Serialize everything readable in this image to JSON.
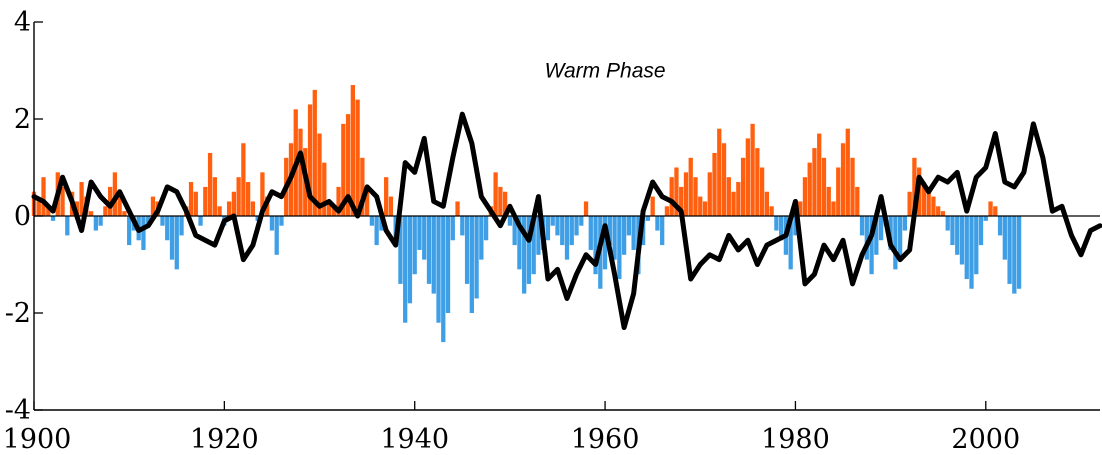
{
  "chart_data": {
    "type": "bar",
    "xlim": [
      1900,
      2012
    ],
    "ylim": [
      -4,
      4
    ],
    "x_ticks": [
      1900,
      1920,
      1940,
      1960,
      1980,
      2000
    ],
    "y_ticks": [
      4,
      2,
      0,
      -2,
      -4
    ],
    "x_tick_labels": [
      "1900",
      "1920",
      "1940",
      "1960",
      "1980",
      "2000"
    ],
    "y_tick_labels": [
      "4",
      "2",
      "0",
      "-2",
      "-4"
    ],
    "annotations": [
      {
        "text": "Warm Phase",
        "x": 1960,
        "y": 3.0
      }
    ],
    "colors": {
      "positive": "#ff5f0e",
      "negative": "#3f9fe6",
      "smoothed": "#000000",
      "zero_line": "#000000"
    },
    "grid": false,
    "series": [
      {
        "style": "bars",
        "x_start": 1900,
        "x_step": 0.5,
        "values": [
          0.5,
          0.3,
          0.8,
          0.2,
          -0.1,
          0.9,
          0.6,
          -0.4,
          0.5,
          0.3,
          0.7,
          0.4,
          0.1,
          -0.3,
          -0.2,
          0.2,
          0.6,
          0.9,
          0.5,
          0.1,
          -0.6,
          -0.3,
          -0.5,
          -0.7,
          -0.2,
          0.4,
          0.3,
          -0.2,
          -0.5,
          -0.9,
          -1.1,
          -0.4,
          0.2,
          0.7,
          0.5,
          -0.2,
          0.6,
          1.3,
          0.8,
          0.2,
          -0.2,
          0.3,
          0.5,
          0.8,
          1.5,
          0.7,
          0.3,
          -0.1,
          0.9,
          0.4,
          -0.3,
          -0.8,
          -0.2,
          1.2,
          1.5,
          2.2,
          1.8,
          1.4,
          2.3,
          2.6,
          1.7,
          1.1,
          0.3,
          0.2,
          0.6,
          1.9,
          2.1,
          2.7,
          2.4,
          1.2,
          0.6,
          -0.2,
          -0.6,
          -0.3,
          0.8,
          0.4,
          -0.5,
          -1.4,
          -2.2,
          -1.8,
          -1.2,
          -0.7,
          -0.9,
          -1.4,
          -1.6,
          -2.2,
          -2.6,
          -2.0,
          -0.5,
          0.3,
          -0.4,
          -1.4,
          -2.0,
          -1.7,
          -0.9,
          -0.5,
          0.2,
          0.9,
          0.6,
          0.5,
          -0.2,
          -0.6,
          -1.1,
          -1.6,
          -1.4,
          -1.2,
          -0.8,
          -0.7,
          -0.5,
          -0.2,
          -0.4,
          -0.6,
          -0.9,
          -0.6,
          -0.4,
          -0.2,
          0.3,
          -0.7,
          -1.2,
          -1.5,
          -1.1,
          -0.6,
          -0.9,
          -1.3,
          -0.8,
          -0.4,
          -0.7,
          -1.2,
          -0.6,
          -0.1,
          0.4,
          -0.3,
          -0.6,
          0.2,
          0.8,
          1.0,
          0.6,
          0.9,
          1.2,
          0.8,
          0.4,
          0.3,
          0.9,
          1.3,
          1.8,
          1.5,
          0.8,
          0.5,
          0.7,
          1.2,
          1.6,
          1.9,
          1.4,
          1.0,
          0.5,
          0.2,
          -0.3,
          -0.5,
          -0.8,
          -1.1,
          -0.4,
          0.3,
          0.8,
          1.1,
          1.4,
          1.7,
          1.2,
          0.6,
          0.3,
          1.0,
          1.5,
          1.8,
          1.2,
          0.6,
          -0.4,
          -0.9,
          -1.2,
          -0.8,
          -0.5,
          -0.2,
          -0.7,
          -1.1,
          -0.9,
          -0.3,
          0.5,
          1.2,
          1.0,
          0.7,
          0.5,
          0.4,
          0.2,
          0.1,
          -0.3,
          -0.6,
          -0.8,
          -1.0,
          -1.3,
          -1.5,
          -1.2,
          -0.6,
          -0.1,
          0.3,
          0.2,
          -0.4,
          -0.9,
          -1.4,
          -1.6,
          -1.5
        ]
      },
      {
        "style": "smoothed-line",
        "x": [
          1900,
          1901,
          1902,
          1903,
          1904,
          1905,
          1906,
          1907,
          1908,
          1909,
          1910,
          1911,
          1912,
          1913,
          1914,
          1915,
          1916,
          1917,
          1918,
          1919,
          1920,
          1921,
          1922,
          1923,
          1924,
          1925,
          1926,
          1927,
          1928,
          1929,
          1930,
          1931,
          1932,
          1933,
          1934,
          1935,
          1936,
          1937,
          1938,
          1939,
          1940,
          1941,
          1942,
          1943,
          1944,
          1945,
          1946,
          1947,
          1948,
          1949,
          1950,
          1951,
          1952,
          1953,
          1954,
          1955,
          1956,
          1957,
          1958,
          1959,
          1960,
          1961,
          1962,
          1963,
          1964,
          1965,
          1966,
          1967,
          1968,
          1969,
          1970,
          1971,
          1972,
          1973,
          1974,
          1975,
          1976,
          1977,
          1978,
          1979,
          1980,
          1981,
          1982,
          1983,
          1984,
          1985,
          1986,
          1987,
          1988,
          1989,
          1990,
          1991,
          1992,
          1993,
          1994,
          1995,
          1996,
          1997,
          1998,
          1999,
          2000,
          2001,
          2002,
          2003,
          2004,
          2005,
          2006,
          2007,
          2008,
          2009,
          2010,
          2011,
          2012
        ],
        "values": [
          0.4,
          0.3,
          0.1,
          0.8,
          0.3,
          -0.3,
          0.7,
          0.4,
          0.2,
          0.5,
          0.1,
          -0.3,
          -0.2,
          0.1,
          0.6,
          0.5,
          0.1,
          -0.4,
          -0.5,
          -0.6,
          -0.1,
          0.0,
          -0.9,
          -0.6,
          0.1,
          0.5,
          0.4,
          0.8,
          1.3,
          0.4,
          0.2,
          0.3,
          0.1,
          0.4,
          0.0,
          0.6,
          0.4,
          -0.3,
          -0.6,
          1.1,
          0.9,
          1.6,
          0.3,
          0.2,
          1.2,
          2.1,
          1.5,
          0.4,
          0.1,
          -0.2,
          0.2,
          -0.2,
          -0.5,
          0.4,
          -1.3,
          -1.1,
          -1.7,
          -1.2,
          -0.8,
          -1.0,
          -0.2,
          -1.2,
          -2.3,
          -1.6,
          0.1,
          0.7,
          0.4,
          0.3,
          0.1,
          -1.3,
          -1.0,
          -0.8,
          -0.9,
          -0.4,
          -0.7,
          -0.5,
          -1.0,
          -0.6,
          -0.5,
          -0.4,
          0.3,
          -1.4,
          -1.2,
          -0.6,
          -0.9,
          -0.5,
          -1.4,
          -0.8,
          -0.4,
          0.4,
          -0.6,
          -0.9,
          -0.7,
          0.8,
          0.5,
          0.8,
          0.7,
          0.9,
          0.1,
          0.8,
          1.0,
          1.7,
          0.7,
          0.6,
          0.9,
          1.9,
          1.2,
          0.1,
          0.2,
          -0.4,
          -0.8,
          -0.3,
          -0.2
        ]
      }
    ]
  }
}
